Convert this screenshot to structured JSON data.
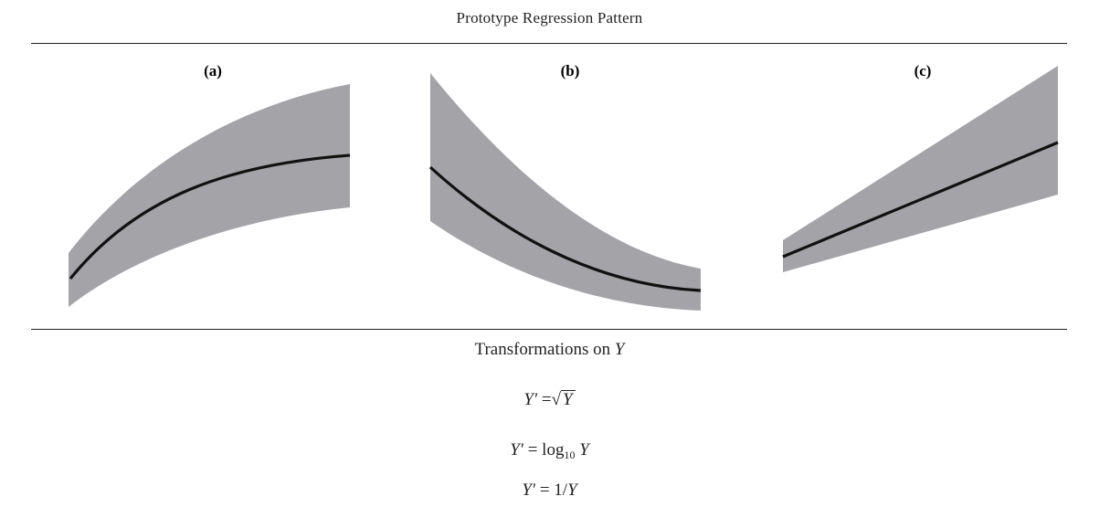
{
  "figure": {
    "title": "Prototype Regression Pattern",
    "panels": [
      {
        "label": "(a)",
        "shape": "concave-increasing"
      },
      {
        "label": "(b)",
        "shape": "convex-decreasing"
      },
      {
        "label": "(c)",
        "shape": "linear-increasing-widening"
      }
    ],
    "band_color": "#a4a4a8",
    "curve_color": "#111111"
  },
  "transformations": {
    "heading": "Transformations on",
    "heading_var": "Y",
    "eq1": {
      "lhs": "Y′",
      "op": "=",
      "rad": "Y"
    },
    "eq2": {
      "lhs": "Y′",
      "op": "=",
      "fn": "log",
      "base": "10",
      "arg": "Y"
    },
    "eq3": {
      "lhs": "Y′",
      "op": "=",
      "num": "1/",
      "arg": "Y"
    }
  }
}
